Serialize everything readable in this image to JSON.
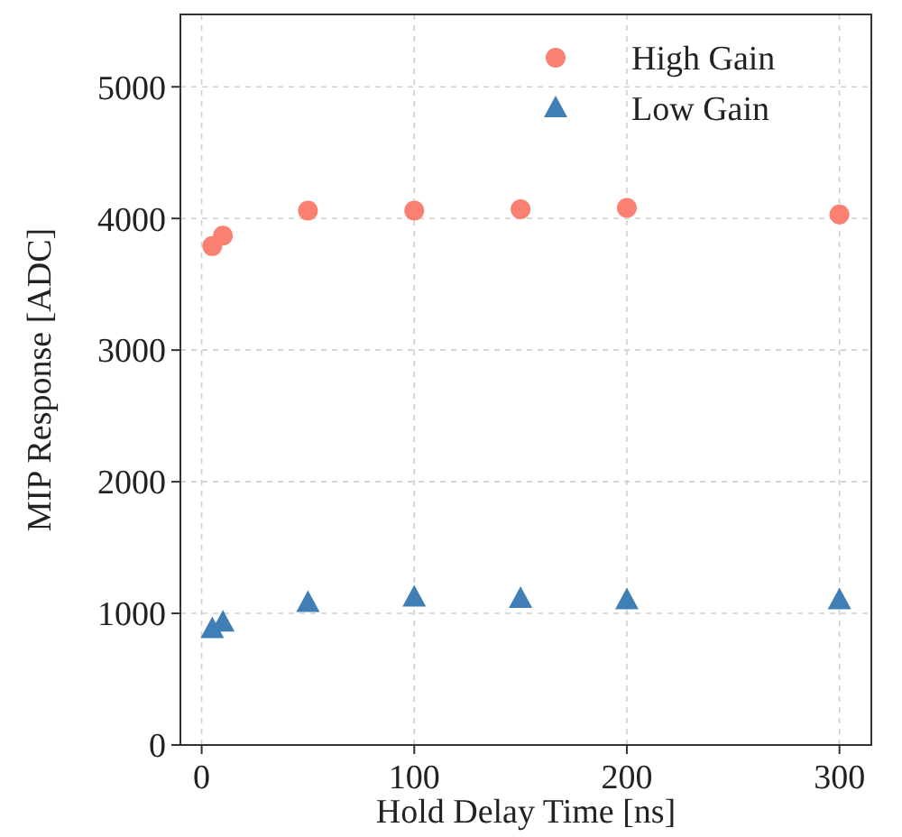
{
  "chart_data": {
    "type": "scatter",
    "xlabel": "Hold Delay Time [ns]",
    "ylabel": "MIP Response [ADC]",
    "x": [
      5,
      10,
      50,
      100,
      150,
      200,
      300
    ],
    "series": [
      {
        "name": "High Gain",
        "color": "#fa8072",
        "marker": "circle",
        "values": [
          3790,
          3870,
          4060,
          4060,
          4070,
          4080,
          4030
        ]
      },
      {
        "name": "Low Gain",
        "color": "#3f7fb5",
        "marker": "triangle",
        "values": [
          880,
          930,
          1080,
          1120,
          1110,
          1100,
          1100
        ]
      }
    ],
    "xlim": [
      -10,
      315
    ],
    "ylim": [
      0,
      5550
    ],
    "xticks": [
      0,
      100,
      200,
      300
    ],
    "yticks": [
      0,
      1000,
      2000,
      3000,
      4000,
      5000
    ],
    "grid": true,
    "legend": "top right"
  }
}
